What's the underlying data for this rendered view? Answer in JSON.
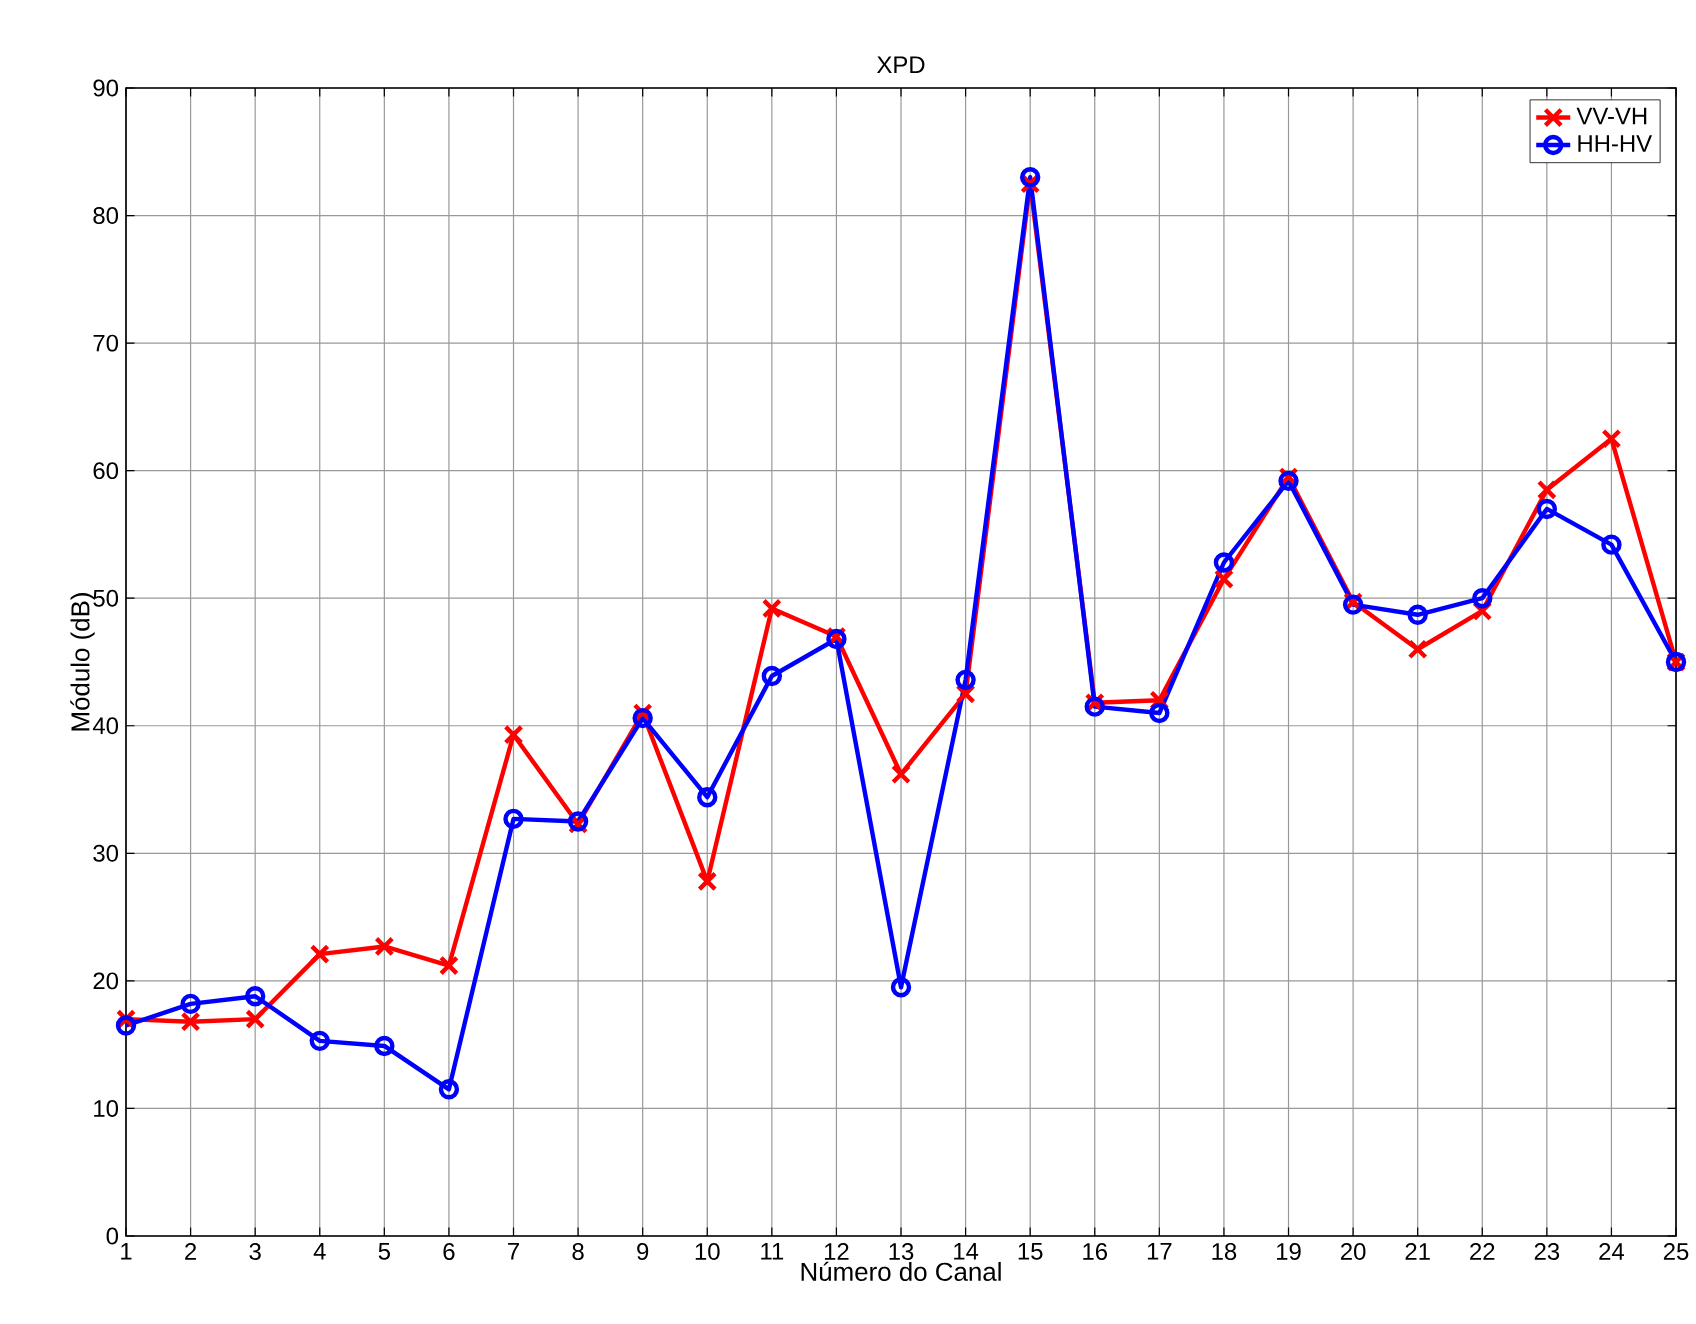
{
  "chart_data": {
    "type": "line",
    "title": "XPD",
    "xlabel": "Número do Canal",
    "ylabel": "Módulo (dB)",
    "x": [
      1,
      2,
      3,
      4,
      5,
      6,
      7,
      8,
      9,
      10,
      11,
      12,
      13,
      14,
      15,
      16,
      17,
      18,
      19,
      20,
      21,
      22,
      23,
      24,
      25
    ],
    "series": [
      {
        "name": "VV-VH",
        "color": "#ff0000",
        "marker": "cross",
        "values": [
          17,
          16.8,
          17,
          22.1,
          22.7,
          21.2,
          39.3,
          32.3,
          41,
          27.8,
          49.2,
          47,
          36.2,
          42.5,
          82.5,
          41.8,
          42,
          51.5,
          59.5,
          49.7,
          46,
          49,
          58.5,
          62.5,
          45
        ]
      },
      {
        "name": "HH-HV",
        "color": "#0000ff",
        "marker": "circle",
        "values": [
          16.5,
          18.2,
          18.8,
          15.3,
          14.9,
          11.5,
          32.7,
          32.5,
          40.6,
          34.4,
          43.9,
          46.8,
          19.5,
          43.6,
          83,
          41.5,
          41,
          52.8,
          59.2,
          49.5,
          48.7,
          50,
          57,
          54.2,
          45
        ]
      }
    ],
    "xlim": [
      1,
      25
    ],
    "ylim": [
      0,
      90
    ],
    "xticks": [
      1,
      2,
      3,
      4,
      5,
      6,
      7,
      8,
      9,
      10,
      11,
      12,
      13,
      14,
      15,
      16,
      17,
      18,
      19,
      20,
      21,
      22,
      23,
      24,
      25
    ],
    "yticks": [
      0,
      10,
      20,
      30,
      40,
      50,
      60,
      70,
      80,
      90
    ],
    "grid": true,
    "legend": "top right"
  }
}
